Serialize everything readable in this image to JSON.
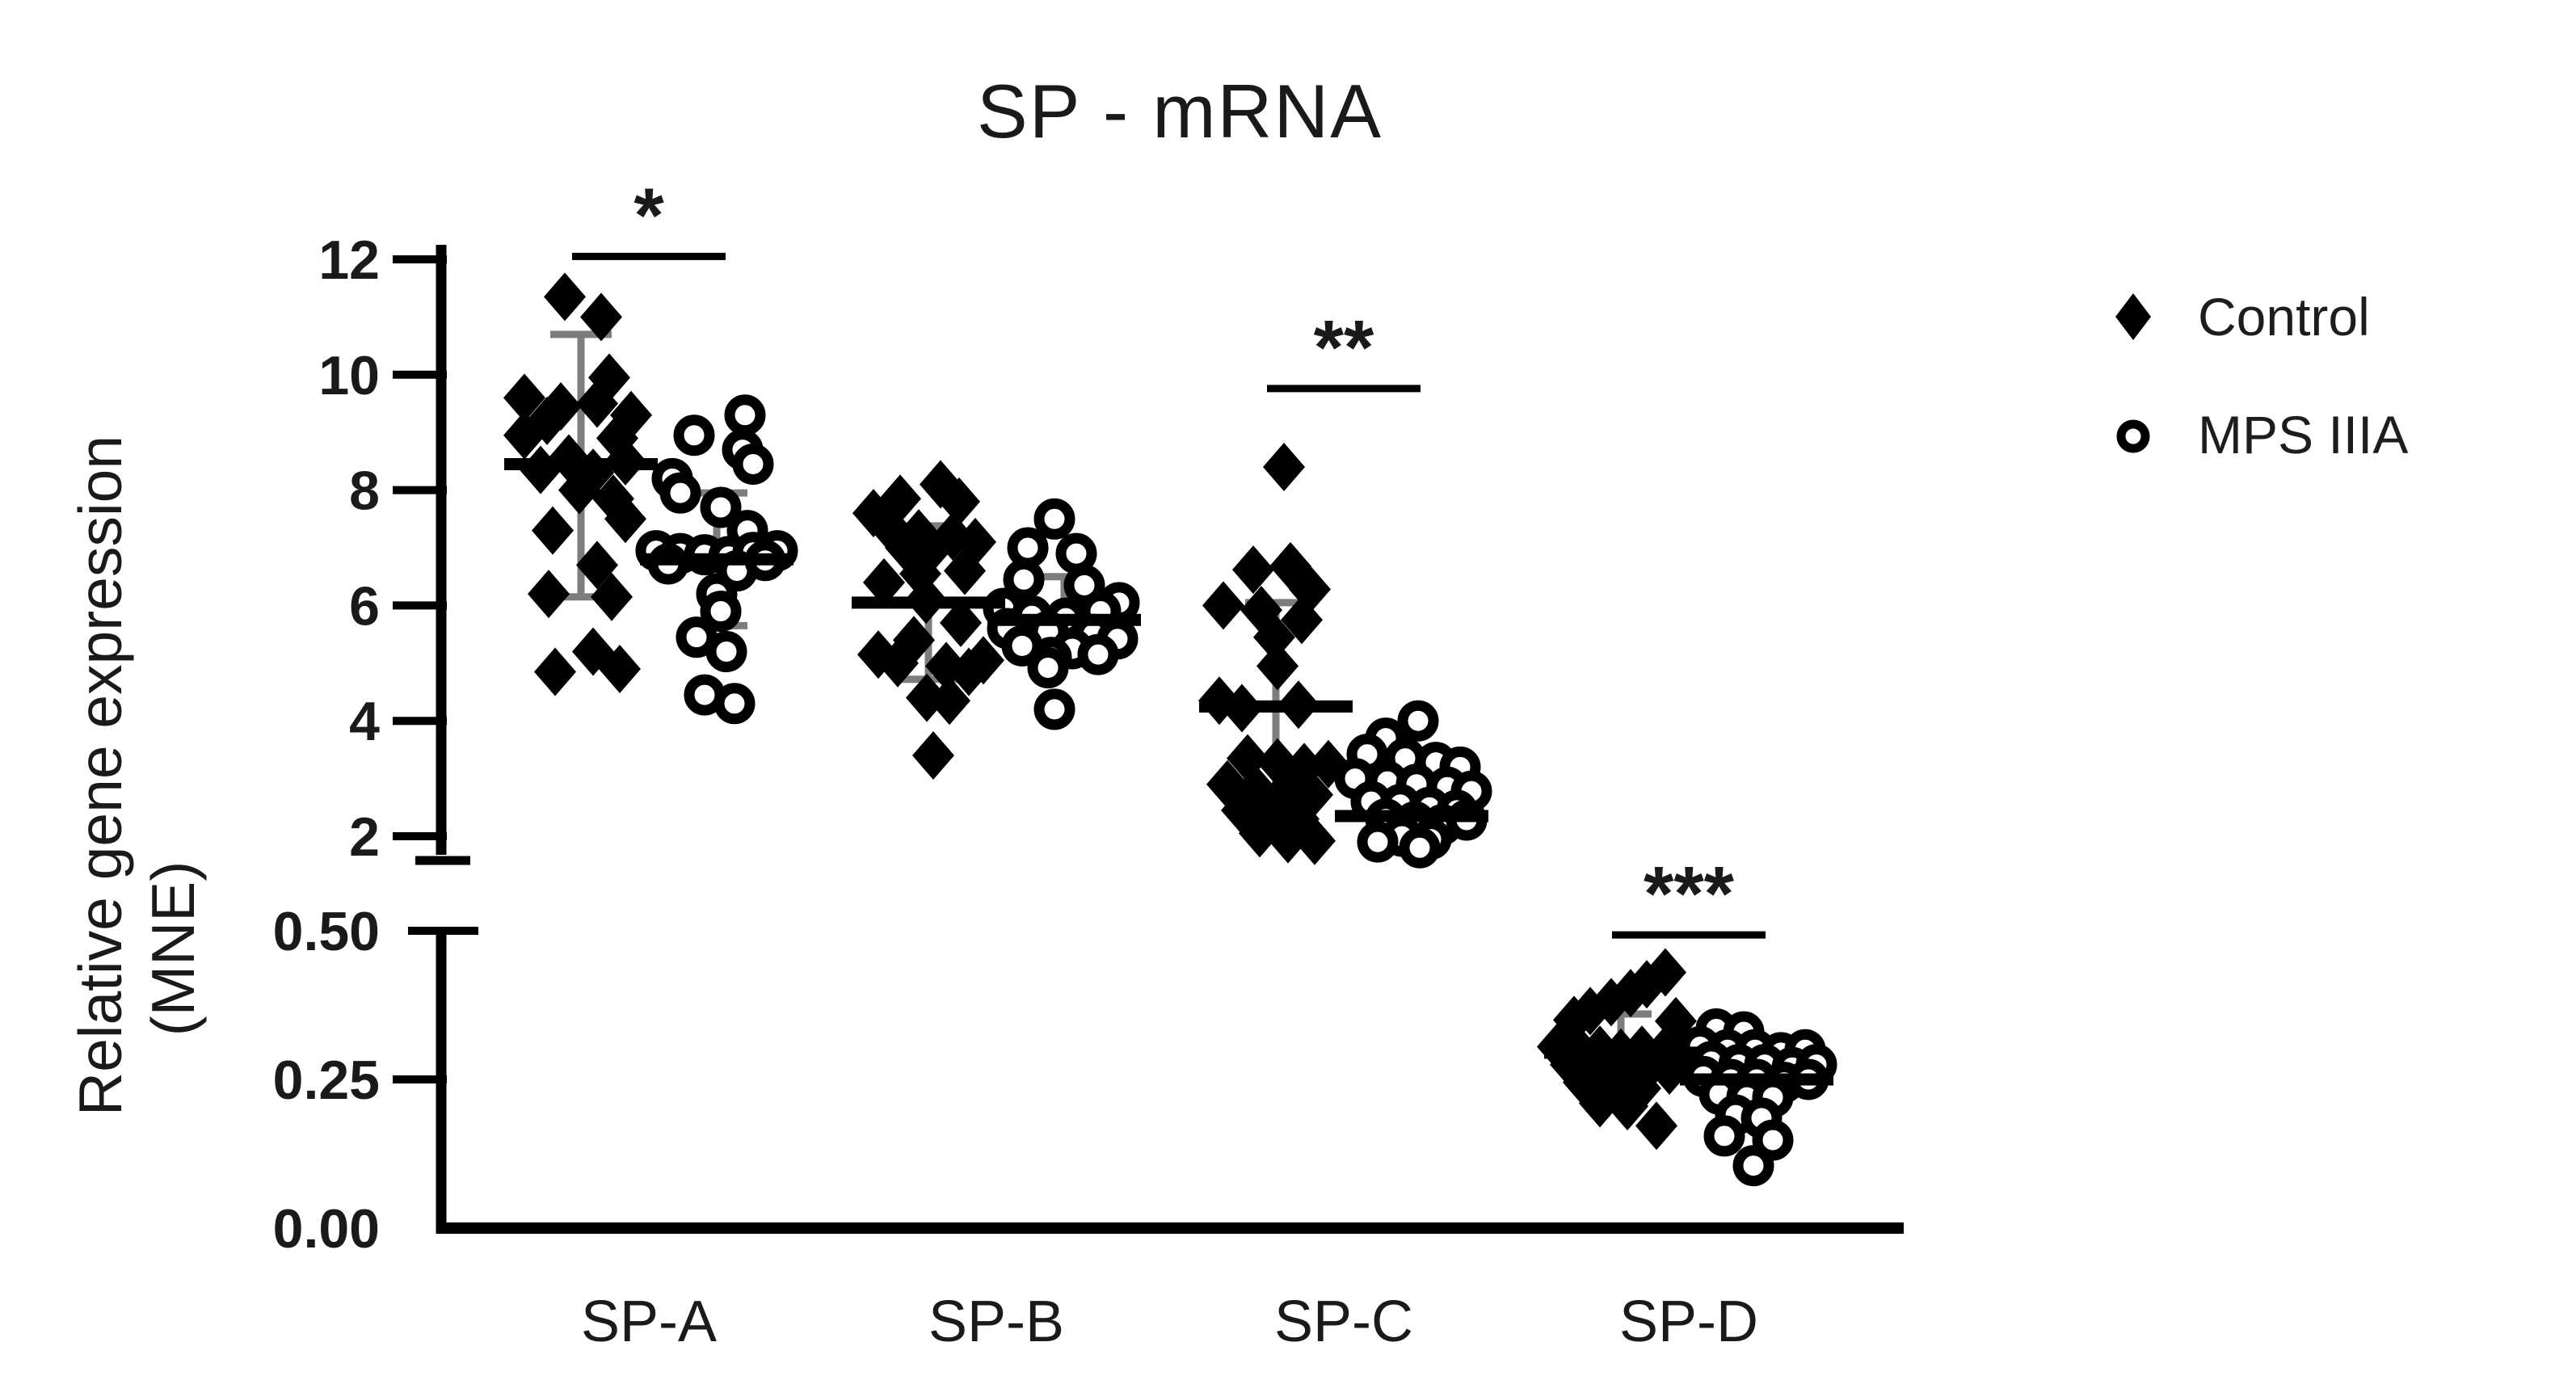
{
  "chart_data": {
    "type": "scatter",
    "title": "SP - mRNA",
    "y_axis": {
      "label_line1": "Relative gene expression",
      "label_line2": "(MNE)",
      "upper": {
        "range": [
          2,
          12
        ],
        "ticks": [
          12,
          10,
          8,
          6,
          4,
          2
        ]
      },
      "lower": {
        "range": [
          0,
          0.5
        ],
        "ticks": [
          {
            "label": "0.50",
            "value": 0.5
          },
          {
            "label": "0.25",
            "value": 0.25
          },
          {
            "label": "0.00",
            "value": 0.0
          }
        ]
      }
    },
    "categories": [
      {
        "label": "SP-A",
        "segment": "upper"
      },
      {
        "label": "SP-B",
        "segment": "upper"
      },
      {
        "label": "SP-C",
        "segment": "upper"
      },
      {
        "label": "SP-D",
        "segment": "lower"
      }
    ],
    "series": [
      {
        "name": "Control",
        "marker": "diamond",
        "groups": [
          {
            "category": "SP-A",
            "mean": 8.45,
            "sd_low": 6.15,
            "sd_high": 10.7,
            "points": [
              [
                -20,
                11.35
              ],
              [
                25,
                11.0
              ],
              [
                35,
                9.95
              ],
              [
                -70,
                9.6
              ],
              [
                -25,
                9.45
              ],
              [
                20,
                9.5
              ],
              [
                62,
                9.3
              ],
              [
                -42,
                9.2
              ],
              [
                -70,
                8.95
              ],
              [
                45,
                8.9
              ],
              [
                -15,
                8.55
              ],
              [
                55,
                8.5
              ],
              [
                -50,
                8.35
              ],
              [
                15,
                8.3
              ],
              [
                -2,
                8.0
              ],
              [
                40,
                7.85
              ],
              [
                55,
                7.5
              ],
              [
                -35,
                7.3
              ],
              [
                20,
                6.7
              ],
              [
                -40,
                6.2
              ],
              [
                38,
                6.15
              ],
              [
                15,
                5.2
              ],
              [
                -32,
                4.85
              ],
              [
                48,
                4.9
              ]
            ]
          },
          {
            "category": "SP-B",
            "mean": 6.05,
            "sd_low": 4.72,
            "sd_high": 7.38,
            "points": [
              [
                15,
                8.1
              ],
              [
                -35,
                7.85
              ],
              [
                38,
                7.8
              ],
              [
                -68,
                7.6
              ],
              [
                -45,
                7.3
              ],
              [
                -12,
                7.25
              ],
              [
                30,
                7.2
              ],
              [
                58,
                7.1
              ],
              [
                -28,
                7.0
              ],
              [
                0,
                6.92
              ],
              [
                45,
                6.6
              ],
              [
                -10,
                6.55
              ],
              [
                -55,
                6.4
              ],
              [
                -3,
                6.1
              ],
              [
                40,
                5.7
              ],
              [
                -18,
                5.4
              ],
              [
                -62,
                5.15
              ],
              [
                -38,
                5.0
              ],
              [
                22,
                4.95
              ],
              [
                68,
                5.05
              ],
              [
                50,
                4.85
              ],
              [
                -2,
                4.4
              ],
              [
                26,
                4.35
              ],
              [
                6,
                3.4
              ]
            ]
          },
          {
            "category": "SP-C",
            "mean": 4.25,
            "sd_low": 2.45,
            "sd_high": 6.05,
            "points": [
              [
                10,
                8.4
              ],
              [
                -28,
                6.62
              ],
              [
                18,
                6.68
              ],
              [
                42,
                6.28
              ],
              [
                -65,
                6.0
              ],
              [
                -18,
                5.92
              ],
              [
                32,
                5.75
              ],
              [
                -2,
                5.45
              ],
              [
                2,
                4.95
              ],
              [
                -70,
                4.35
              ],
              [
                -42,
                4.22
              ],
              [
                28,
                4.28
              ],
              [
                -35,
                3.35
              ],
              [
                2,
                3.28
              ],
              [
                35,
                3.2
              ],
              [
                65,
                3.25
              ],
              [
                -60,
                2.9
              ],
              [
                -25,
                2.82
              ],
              [
                12,
                2.78
              ],
              [
                45,
                2.72
              ],
              [
                -42,
                2.45
              ],
              [
                -8,
                2.38
              ],
              [
                28,
                2.3
              ],
              [
                -20,
                2.05
              ],
              [
                15,
                1.95
              ],
              [
                48,
                1.92
              ]
            ]
          },
          {
            "category": "SP-D",
            "mean": 0.295,
            "sd_low": 0.235,
            "sd_high": 0.36,
            "points": [
              [
                55,
                0.43
              ],
              [
                32,
                0.41
              ],
              [
                12,
                0.395
              ],
              [
                -12,
                0.38
              ],
              [
                -38,
                0.365
              ],
              [
                -58,
                0.35
              ],
              [
                68,
                0.348
              ],
              [
                -78,
                0.305
              ],
              [
                -52,
                0.3
              ],
              [
                -26,
                0.3
              ],
              [
                0,
                0.295
              ],
              [
                26,
                0.3
              ],
              [
                52,
                0.295
              ],
              [
                76,
                0.3
              ],
              [
                -62,
                0.275
              ],
              [
                -32,
                0.27
              ],
              [
                -2,
                0.268
              ],
              [
                34,
                0.27
              ],
              [
                60,
                0.265
              ],
              [
                -46,
                0.245
              ],
              [
                -12,
                0.24
              ],
              [
                24,
                0.235
              ],
              [
                -26,
                0.21
              ],
              [
                8,
                0.205
              ],
              [
                44,
                0.172
              ]
            ]
          }
        ]
      },
      {
        "name": "MPS IIIA",
        "marker": "circle",
        "groups": [
          {
            "category": "SP-A",
            "mean": 6.8,
            "sd_low": 5.65,
            "sd_high": 7.95,
            "points": [
              [
                35,
                9.3
              ],
              [
                -28,
                8.95
              ],
              [
                32,
                8.7
              ],
              [
                45,
                8.45
              ],
              [
                -55,
                8.2
              ],
              [
                -45,
                7.95
              ],
              [
                5,
                7.7
              ],
              [
                38,
                7.3
              ],
              [
                -75,
                6.95
              ],
              [
                -45,
                6.9
              ],
              [
                -15,
                6.88
              ],
              [
                15,
                6.85
              ],
              [
                45,
                6.92
              ],
              [
                75,
                6.95
              ],
              [
                -60,
                6.72
              ],
              [
                25,
                6.6
              ],
              [
                60,
                6.78
              ],
              [
                0,
                6.2
              ],
              [
                5,
                5.9
              ],
              [
                -25,
                5.45
              ],
              [
                12,
                5.2
              ],
              [
                -15,
                4.45
              ],
              [
                22,
                4.3
              ]
            ]
          },
          {
            "category": "SP-B",
            "mean": 5.75,
            "sd_low": 5.0,
            "sd_high": 6.5,
            "points": [
              [
                -12,
                7.5
              ],
              [
                -45,
                7.0
              ],
              [
                15,
                6.9
              ],
              [
                -50,
                6.45
              ],
              [
                25,
                6.35
              ],
              [
                68,
                6.05
              ],
              [
                -75,
                5.95
              ],
              [
                45,
                5.9
              ],
              [
                -40,
                5.82
              ],
              [
                2,
                5.78
              ],
              [
                -70,
                5.6
              ],
              [
                -20,
                5.55
              ],
              [
                36,
                5.5
              ],
              [
                66,
                5.42
              ],
              [
                -52,
                5.3
              ],
              [
                10,
                5.25
              ],
              [
                42,
                5.15
              ],
              [
                -16,
                5.1
              ],
              [
                -20,
                4.92
              ],
              [
                -12,
                4.2
              ]
            ]
          },
          {
            "category": "SP-C",
            "mean": 2.35,
            "sd_low": 1.8,
            "sd_high": 2.95,
            "points": [
              [
                8,
                4.0
              ],
              [
                -32,
                3.7
              ],
              [
                -55,
                3.42
              ],
              [
                -8,
                3.35
              ],
              [
                30,
                3.28
              ],
              [
                60,
                3.2
              ],
              [
                -70,
                3.0
              ],
              [
                -30,
                2.95
              ],
              [
                6,
                2.9
              ],
              [
                44,
                2.85
              ],
              [
                74,
                2.78
              ],
              [
                -50,
                2.6
              ],
              [
                -14,
                2.55
              ],
              [
                22,
                2.5
              ],
              [
                56,
                2.45
              ],
              [
                -32,
                2.3
              ],
              [
                4,
                2.25
              ],
              [
                38,
                2.2
              ],
              [
                68,
                2.28
              ],
              [
                -12,
                2.0
              ],
              [
                24,
                1.95
              ],
              [
                -42,
                1.9
              ],
              [
                10,
                1.8
              ]
            ]
          },
          {
            "category": "SP-D",
            "mean": 0.25,
            "sd_low": 0.2,
            "sd_high": 0.3,
            "points": [
              [
                -50,
                0.335
              ],
              [
                -16,
                0.33
              ],
              [
                -70,
                0.305
              ],
              [
                -36,
                0.3
              ],
              [
                -2,
                0.3
              ],
              [
                30,
                0.295
              ],
              [
                60,
                0.3
              ],
              [
                -56,
                0.28
              ],
              [
                -22,
                0.275
              ],
              [
                10,
                0.275
              ],
              [
                44,
                0.27
              ],
              [
                74,
                0.275
              ],
              [
                -66,
                0.255
              ],
              [
                -32,
                0.25
              ],
              [
                0,
                0.25
              ],
              [
                34,
                0.245
              ],
              [
                64,
                0.25
              ],
              [
                -46,
                0.225
              ],
              [
                -12,
                0.22
              ],
              [
                20,
                0.22
              ],
              [
                -26,
                0.19
              ],
              [
                6,
                0.185
              ],
              [
                -40,
                0.155
              ],
              [
                20,
                0.148
              ],
              [
                -4,
                0.105
              ]
            ]
          }
        ]
      }
    ],
    "significance": [
      {
        "category": "SP-A",
        "label": "*",
        "line_value": 12.05
      },
      {
        "category": "SP-C",
        "label": "**",
        "line_value": 9.76
      },
      {
        "category": "SP-D",
        "label": "***",
        "line_value": 0.493
      }
    ],
    "legend_position": "right",
    "grid": false
  },
  "colors": {
    "point": "#000000",
    "mean_bar": "#000000",
    "error_bar": "#7d7d7d",
    "axis": "#000000",
    "text": "#1a1a1a",
    "background": "#ffffff"
  }
}
